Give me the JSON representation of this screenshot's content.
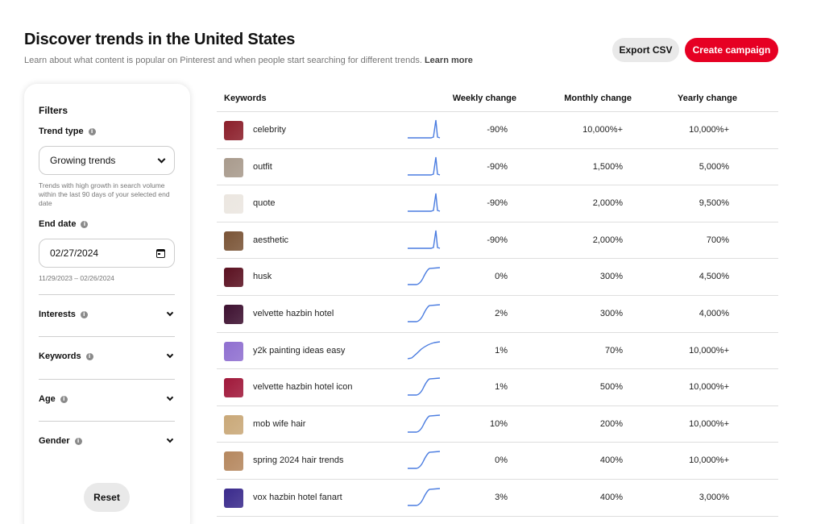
{
  "header": {
    "title": "Discover trends in the United States",
    "subtitle": "Learn about what content is popular on Pinterest and when people start searching for different trends.",
    "learn_more": "Learn more",
    "export_label": "Export CSV",
    "create_label": "Create campaign"
  },
  "filters": {
    "heading": "Filters",
    "trend_type_label": "Trend type",
    "trend_type_value": "Growing trends",
    "trend_type_helper": "Trends with high growth in search volume within the last 90 days of your selected end date",
    "end_date_label": "End date",
    "end_date_value": "02/27/2024",
    "date_range": "11/29/2023 – 02/26/2024",
    "accordions": [
      "Interests",
      "Keywords",
      "Age",
      "Gender"
    ],
    "reset_label": "Reset"
  },
  "table": {
    "headers": {
      "keywords": "Keywords",
      "weekly": "Weekly change",
      "monthly": "Monthly change",
      "yearly": "Yearly change"
    },
    "rows": [
      {
        "keyword": "celebrity",
        "weekly": "-90%",
        "monthly": "10,000%+",
        "yearly": "10,000%+",
        "trend": "spike",
        "thumb_color": "#8b1e2a"
      },
      {
        "keyword": "outfit",
        "weekly": "-90%",
        "monthly": "1,500%",
        "yearly": "5,000%",
        "trend": "spike",
        "thumb_color": "#a89a8c"
      },
      {
        "keyword": "quote",
        "weekly": "-90%",
        "monthly": "2,000%",
        "yearly": "9,500%",
        "trend": "spike",
        "thumb_color": "#ebe6e0"
      },
      {
        "keyword": "aesthetic",
        "weekly": "-90%",
        "monthly": "2,000%",
        "yearly": "700%",
        "trend": "spike",
        "thumb_color": "#7a5436"
      },
      {
        "keyword": "husk",
        "weekly": "0%",
        "monthly": "300%",
        "yearly": "4,500%",
        "trend": "step",
        "thumb_color": "#5a1020"
      },
      {
        "keyword": "velvette hazbin hotel",
        "weekly": "2%",
        "monthly": "300%",
        "yearly": "4,000%",
        "trend": "step",
        "thumb_color": "#3d1030"
      },
      {
        "keyword": "y2k painting ideas easy",
        "weekly": "1%",
        "monthly": "70%",
        "yearly": "10,000%+",
        "trend": "curve",
        "thumb_color": "#8f6fd0"
      },
      {
        "keyword": "velvette hazbin hotel icon",
        "weekly": "1%",
        "monthly": "500%",
        "yearly": "10,000%+",
        "trend": "step",
        "thumb_color": "#a0183a"
      },
      {
        "keyword": "mob wife hair",
        "weekly": "10%",
        "monthly": "200%",
        "yearly": "10,000%+",
        "trend": "step",
        "thumb_color": "#c9a878"
      },
      {
        "keyword": "spring 2024 hair trends",
        "weekly": "0%",
        "monthly": "400%",
        "yearly": "10,000%+",
        "trend": "step",
        "thumb_color": "#b5875e"
      },
      {
        "keyword": "vox hazbin hotel fanart",
        "weekly": "3%",
        "monthly": "400%",
        "yearly": "3,000%",
        "trend": "step",
        "thumb_color": "#3a2a8c"
      }
    ]
  },
  "colors": {
    "accent": "#e60023",
    "sparkline": "#4a7ce0"
  }
}
